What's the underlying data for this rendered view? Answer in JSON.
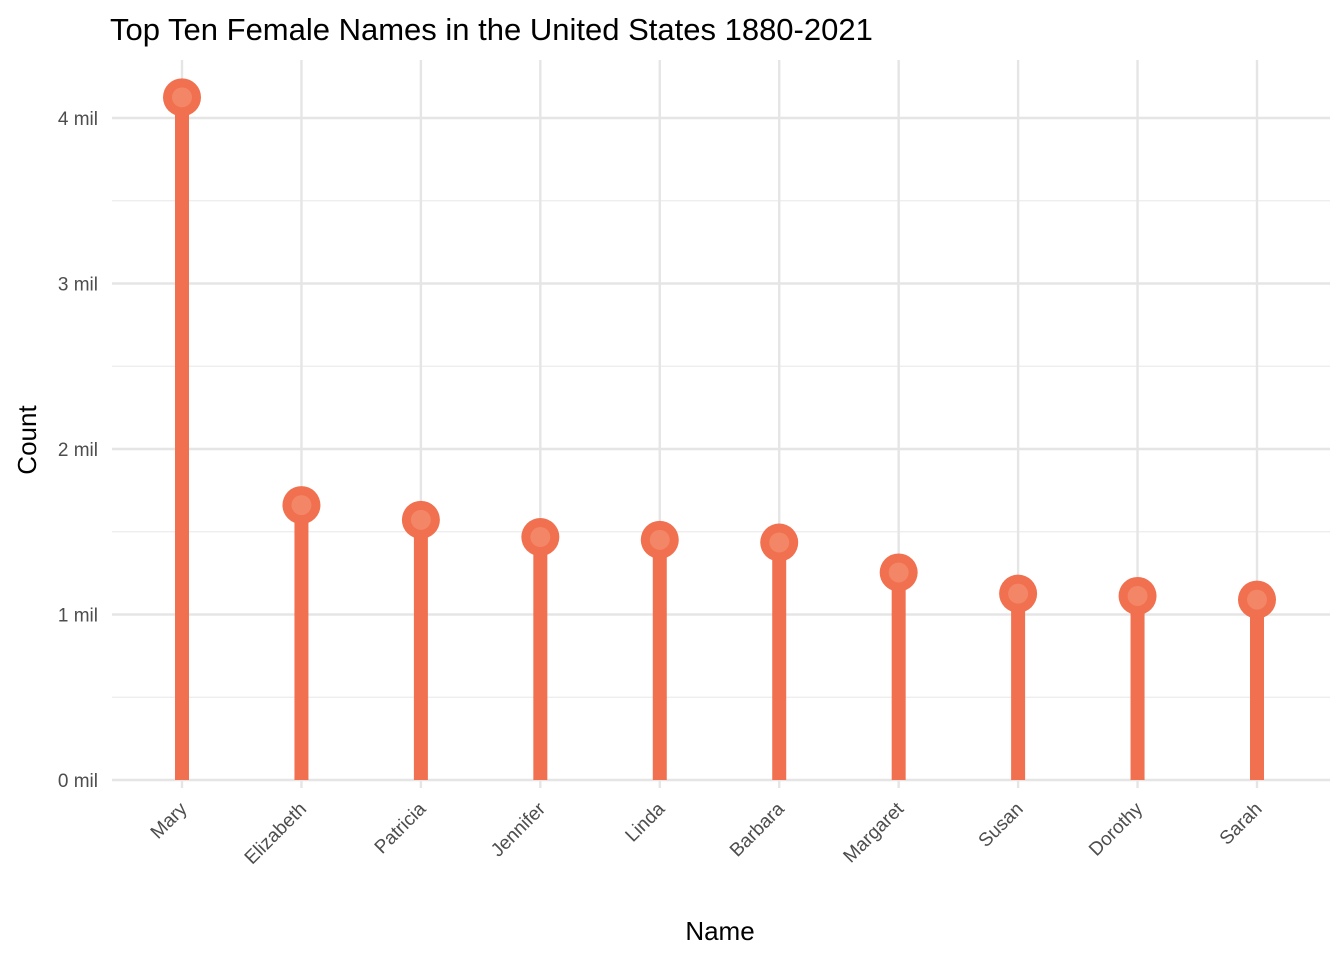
{
  "chart_data": {
    "type": "lollipop",
    "title": "Top Ten Female Names in the United States 1880-2021",
    "xlabel": "Name",
    "ylabel": "Count",
    "categories": [
      "Mary",
      "Elizabeth",
      "Patricia",
      "Jennifer",
      "Linda",
      "Barbara",
      "Margaret",
      "Susan",
      "Dorothy",
      "Sarah"
    ],
    "values": [
      4125000,
      1661000,
      1572000,
      1468000,
      1451000,
      1435000,
      1254000,
      1126000,
      1112000,
      1090000
    ],
    "y_ticks": [
      0,
      1000000,
      2000000,
      3000000,
      4000000
    ],
    "y_tick_labels": [
      "0 mil",
      "1 mil",
      "2 mil",
      "3 mil",
      "4 mil"
    ],
    "ylim": [
      -25000,
      4250000
    ],
    "grid": true,
    "legend": "none",
    "color": "#f0704f"
  }
}
